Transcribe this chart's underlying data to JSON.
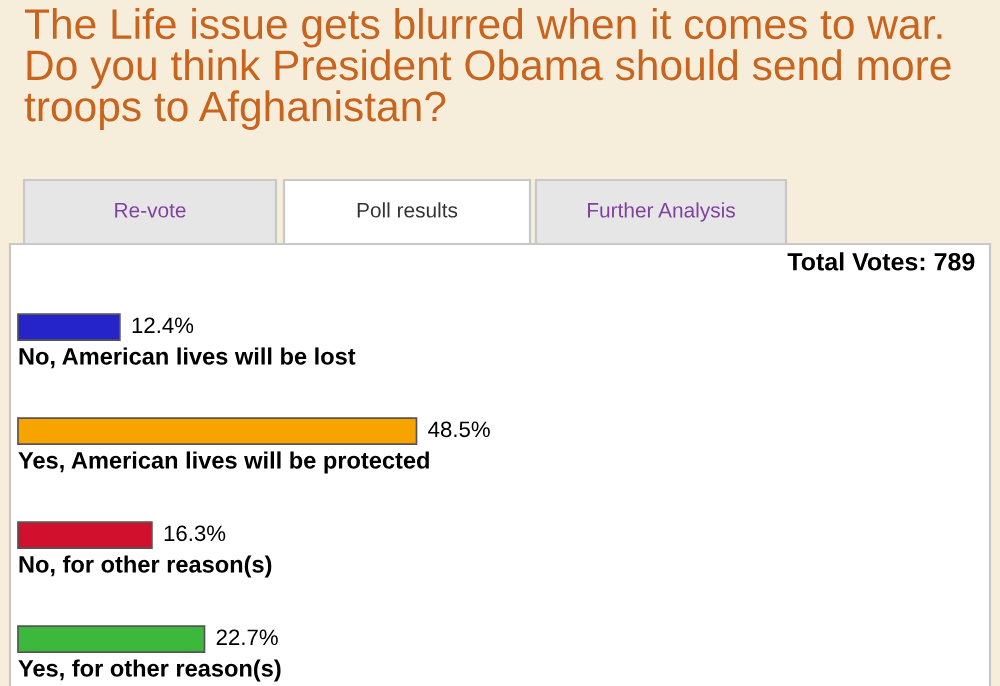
{
  "chart_data": {
    "type": "bar",
    "orientation": "horizontal",
    "title": "The Life issue gets blurred when it comes to war. Do you think President Obama should send more troops to Afghanistan?",
    "categories": [
      "No, American lives will be lost",
      "Yes, American lives will be protected",
      "No, for other reason(s)",
      "Yes, for other reason(s)"
    ],
    "values": [
      12.4,
      48.5,
      16.3,
      22.7
    ],
    "value_labels": [
      "12.4%",
      "48.5%",
      "16.3%",
      "22.7%"
    ],
    "colors": [
      "#2424c8",
      "#f7a400",
      "#d0102c",
      "#3cb83c"
    ],
    "annotations": [
      "Re-vote",
      "Poll results",
      "Further Analysis",
      "Total Votes: 789"
    ],
    "legend": false
  }
}
